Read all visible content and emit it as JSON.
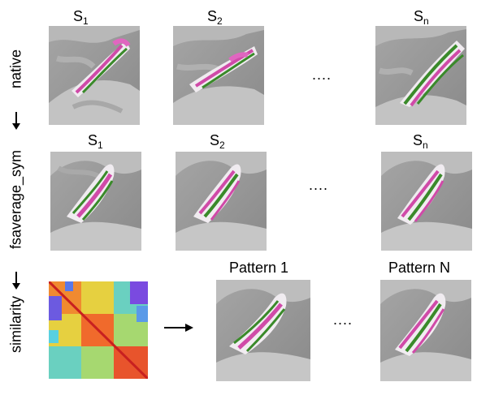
{
  "rows": {
    "native": "native",
    "fsaverage": "fsaverage_sym",
    "similarity": "similarity"
  },
  "row1": {
    "s1": {
      "base": "S",
      "sub": "1"
    },
    "s2": {
      "base": "S",
      "sub": "2"
    },
    "sn": {
      "base": "S",
      "sub": "n"
    },
    "ellipsis": "...."
  },
  "row2": {
    "s1": {
      "base": "S",
      "sub": "1"
    },
    "s2": {
      "base": "S",
      "sub": "2"
    },
    "sn": {
      "base": "S",
      "sub": "n"
    },
    "ellipsis": "...."
  },
  "row3": {
    "pattern1": "Pattern 1",
    "patternN": "Pattern N",
    "ellipsis": "...."
  },
  "colors": {
    "brain_dark": "#8f8f8f",
    "brain_light": "#c9c9c9",
    "pattern_pink": "#d04aa8",
    "pattern_green": "#3a8a2a"
  },
  "icons": [
    "down-arrow-icon",
    "right-arrow-icon"
  ]
}
